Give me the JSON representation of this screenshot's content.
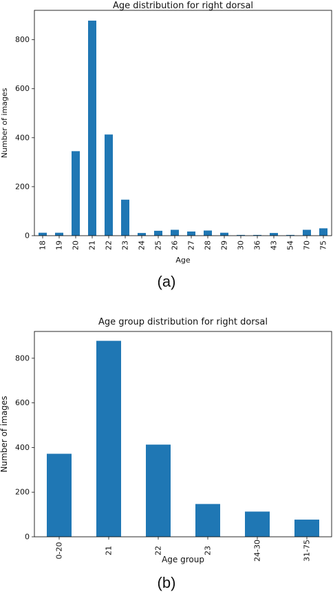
{
  "chart_data": [
    {
      "type": "bar",
      "title": "Age distribution for right dorsal",
      "xlabel": "Age",
      "ylabel": "Number of images",
      "categories": [
        "18",
        "19",
        "20",
        "21",
        "22",
        "23",
        "24",
        "25",
        "26",
        "27",
        "28",
        "29",
        "30",
        "36",
        "43",
        "54",
        "70",
        "75"
      ],
      "values": [
        12,
        12,
        345,
        878,
        413,
        147,
        11,
        20,
        24,
        17,
        21,
        12,
        3,
        3,
        11,
        3,
        24,
        30
      ],
      "yticks": [
        0,
        200,
        400,
        600,
        800
      ],
      "ylim": [
        0,
        920
      ],
      "color": "#1f77b4",
      "grid": false
    },
    {
      "type": "bar",
      "title": "Age group distribution for right dorsal",
      "xlabel": "Age group",
      "ylabel": "Number of images",
      "categories": [
        "0-20",
        "21",
        "22",
        "23",
        "24-30",
        "31-75"
      ],
      "values": [
        372,
        878,
        413,
        147,
        113,
        77
      ],
      "yticks": [
        0,
        200,
        400,
        600,
        800
      ],
      "ylim": [
        0,
        920
      ],
      "color": "#1f77b4",
      "grid": false
    }
  ],
  "captions": {
    "a": "(a)",
    "b": "(b)"
  }
}
